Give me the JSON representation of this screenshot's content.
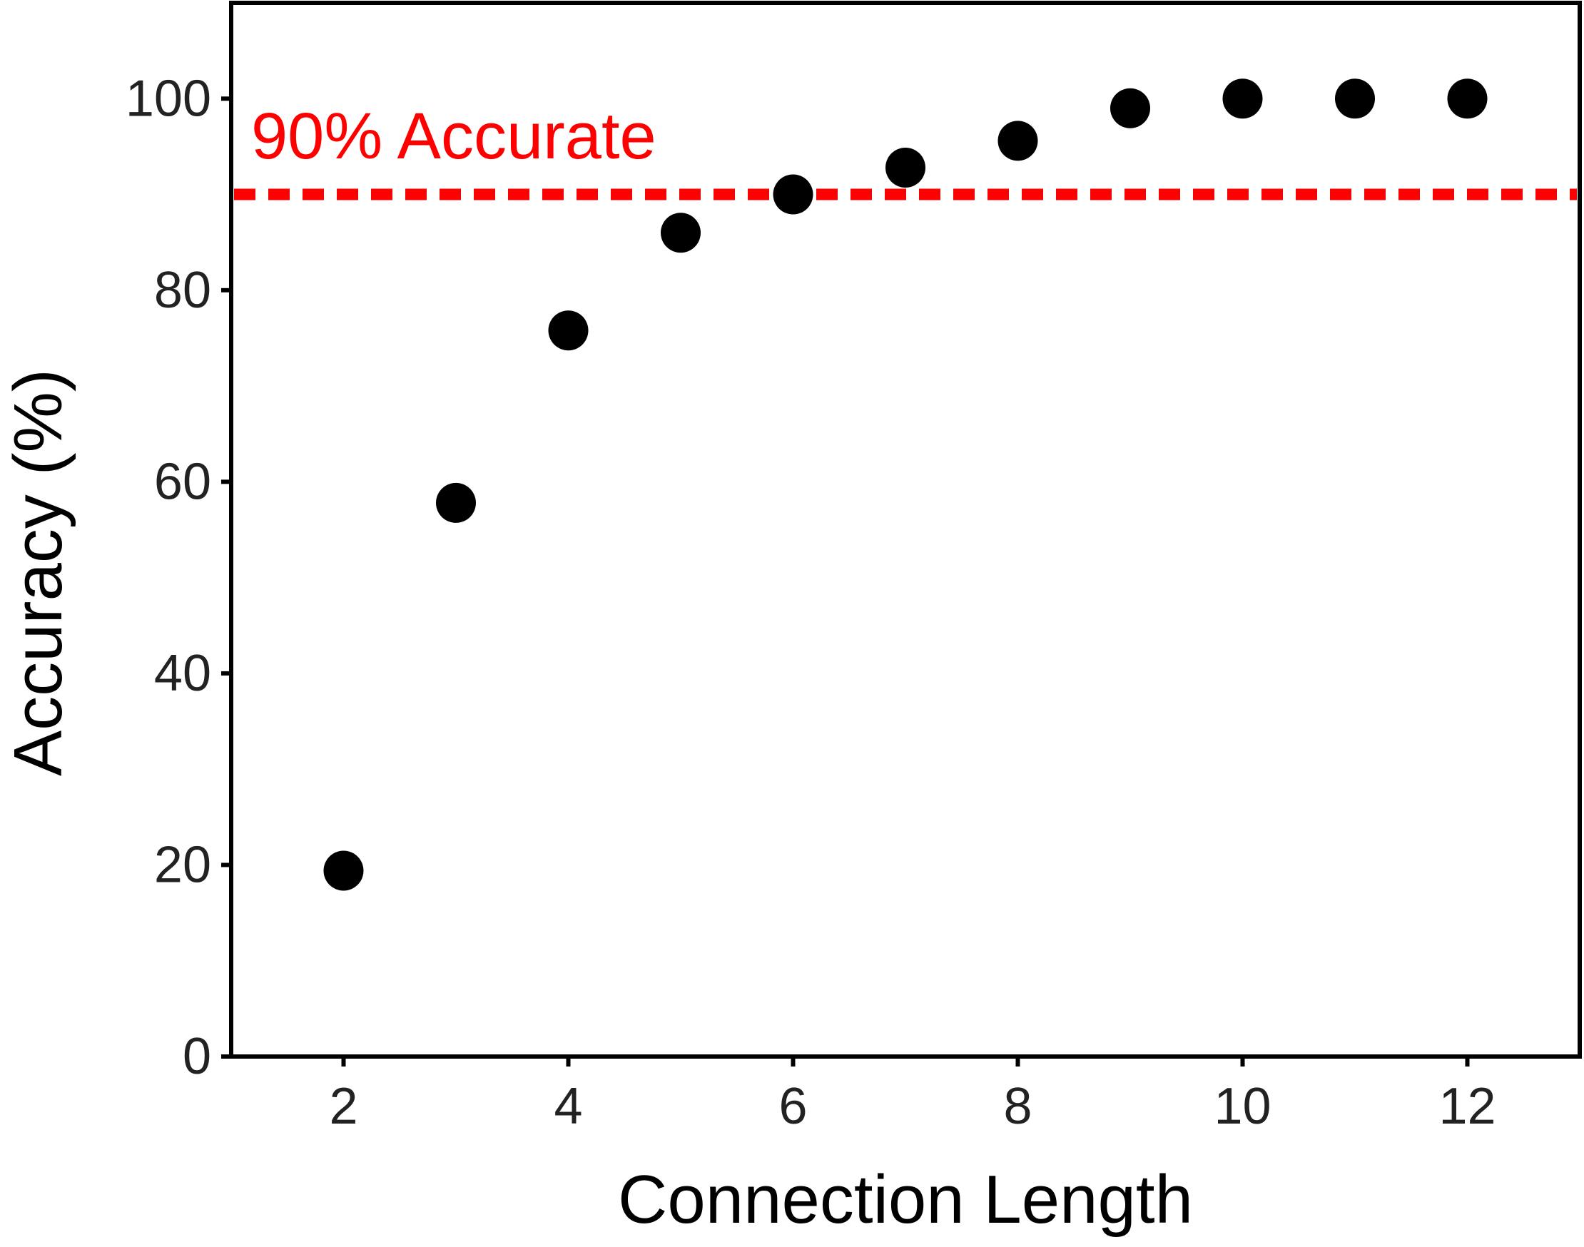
{
  "chart_data": {
    "type": "scatter",
    "title": "",
    "xlabel": "Connection Length",
    "ylabel": "Accuracy (%)",
    "xlim": [
      1,
      13
    ],
    "ylim": [
      0,
      110
    ],
    "x_ticks": [
      2,
      4,
      6,
      8,
      10,
      12
    ],
    "y_ticks": [
      0,
      20,
      40,
      60,
      80,
      100
    ],
    "grid": false,
    "legend": "none",
    "series": [
      {
        "color": "#000000",
        "x": [
          2,
          3,
          4,
          5,
          6,
          7,
          8,
          9,
          10,
          11,
          12
        ],
        "y": [
          19.4,
          57.8,
          75.8,
          86,
          90,
          92.8,
          95.6,
          99,
          100,
          100,
          100
        ]
      }
    ],
    "reference_line": {
      "y": 90,
      "label": "90% Accurate",
      "color": "#ff0000",
      "style": "dashed"
    }
  }
}
